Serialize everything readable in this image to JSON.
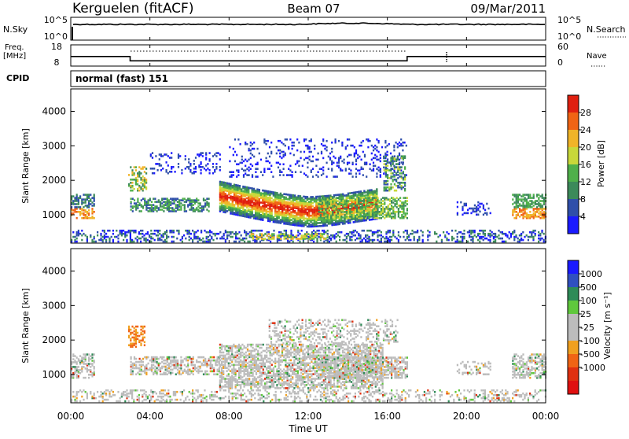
{
  "header": {
    "station": "Kerguelen (fitACF)",
    "beam": "Beam 07",
    "date": "09/Mar/2011"
  },
  "sky_panel": {
    "left_label": "N.Sky",
    "left_ticks": [
      "10^5",
      "10^0"
    ],
    "right_ticks": [
      "10^5",
      "10^0"
    ],
    "right_label": "N.Search"
  },
  "freq_panel": {
    "left_label_1": "Freq.",
    "left_label_2": "[MHz]",
    "left_ticks": [
      "18",
      "8"
    ],
    "right_ticks": [
      "60",
      "0"
    ],
    "right_label": "Nave"
  },
  "cpid": {
    "label": "CPID",
    "value": "normal (fast) 151"
  },
  "colors": {
    "power_scale": [
      "#1a1aff",
      "#2f4faa",
      "#3c8a5a",
      "#4fb04a",
      "#c8d83a",
      "#f0b428",
      "#f06414",
      "#e02010"
    ],
    "velocity_scale": [
      "#1a1aff",
      "#3050c0",
      "#2e8b57",
      "#5fc83c",
      "#bcbcbc",
      "#bcbcbc",
      "#f0a020",
      "#f06414",
      "#e03010",
      "#e01010"
    ]
  },
  "chart_data": [
    {
      "type": "heatmap",
      "title": "",
      "ylabel": "Slant Range [km]",
      "y_ticks": [
        "1000",
        "2000",
        "3000",
        "4000"
      ],
      "ylim": [
        180,
        4650
      ],
      "colorbar_label": "Power [dB]",
      "colorbar_ticks": [
        "4",
        "8",
        "12",
        "16",
        "20",
        "24",
        "28"
      ],
      "colorbar_range": [
        0,
        32
      ]
    },
    {
      "type": "heatmap",
      "title": "",
      "ylabel": "Slant Range [km]",
      "y_ticks": [
        "1000",
        "2000",
        "3000",
        "4000"
      ],
      "ylim": [
        180,
        4650
      ],
      "colorbar_label": "Velocity [m s⁻¹]",
      "colorbar_ticks": [
        "1000",
        "500",
        "100",
        "25",
        "-25",
        "-100",
        "-500",
        "-1000"
      ]
    },
    {
      "type": "line",
      "name": "frequency",
      "x": [
        "00:00",
        "03:00",
        "03:00",
        "17:00",
        "17:00",
        "24:00"
      ],
      "y": [
        12.5,
        12.5,
        10.5,
        10.5,
        12.5,
        12.5
      ]
    }
  ],
  "time_axis": {
    "ticks": [
      "00:00",
      "04:00",
      "08:00",
      "12:00",
      "16:00",
      "20:00",
      "00:00"
    ],
    "label": "Time UT"
  }
}
